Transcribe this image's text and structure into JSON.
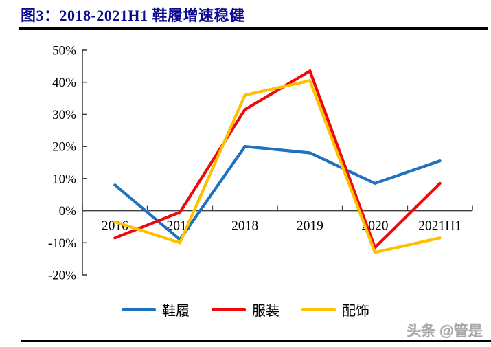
{
  "header": {
    "title": "图3：2018-2021H1 鞋履增速稳健"
  },
  "chart_data": {
    "type": "line",
    "title": "2018-2021H1 鞋履增速稳健",
    "categories": [
      "2016",
      "2017",
      "2018",
      "2019",
      "2020",
      "2021H1"
    ],
    "series": [
      {
        "name": "鞋履",
        "color": "#1F72BE",
        "values": [
          8,
          -9,
          20,
          18,
          8.5,
          15.5
        ]
      },
      {
        "name": "服装",
        "color": "#EE0A0A",
        "values": [
          -8.5,
          -0.5,
          31.5,
          43.5,
          -11.5,
          8.5
        ]
      },
      {
        "name": "配饰",
        "color": "#FFC000",
        "values": [
          -3.5,
          -10,
          36,
          40.5,
          -13,
          -8.5
        ]
      }
    ],
    "ylim": [
      -20,
      50
    ],
    "ytick_step": 10,
    "ytick_labels": [
      "50%",
      "40%",
      "30%",
      "20%",
      "10%",
      "0%",
      "-10%",
      "-20%"
    ],
    "xlabel": "",
    "ylabel": "",
    "grid": false,
    "legend_position": "bottom"
  },
  "styles": {
    "title_color": "#0A0B8F",
    "axis_color": "#404040",
    "watermark_color": "#A8A8A8"
  },
  "watermark": {
    "text": "头条 @管是"
  }
}
